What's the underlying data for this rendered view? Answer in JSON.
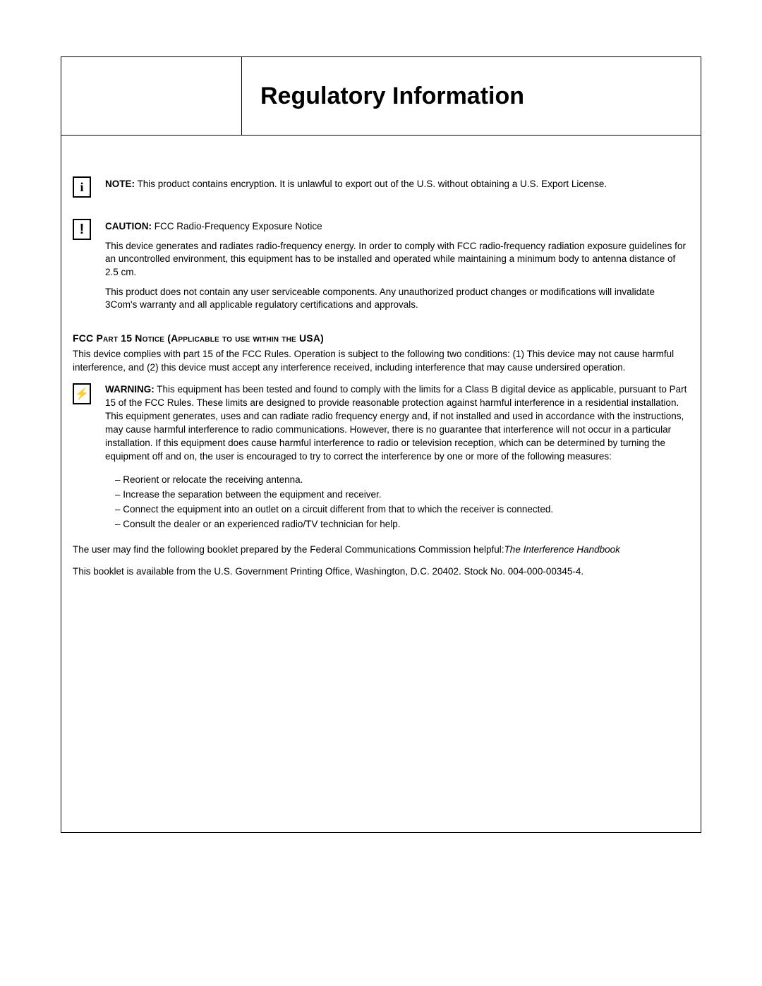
{
  "page": {
    "title": "Regulatory Information"
  },
  "note": {
    "label": "NOTE:",
    "text": " This product contains encryption. It is unlawful to export out of the U.S. without obtaining a U.S. Export License."
  },
  "caution": {
    "label": "CAUTION:",
    "title": " FCC Radio-Frequency Exposure Notice",
    "p1": "This device generates and radiates radio-frequency energy. In order to comply with FCC radio-frequency radiation exposure guidelines for an uncontrolled environment, this equipment has to be installed and operated while maintaining a minimum body to antenna distance of 2.5 cm.",
    "p2": "This product does not contain any user serviceable components. Any unauthorized product changes or modifications will invalidate 3Com's warranty and all applicable regulatory certifications and approvals."
  },
  "fcc": {
    "heading": "FCC Part 15 Notice (Applicable to use within the USA)",
    "intro": "This device complies with part 15 of the FCC Rules. Operation is subject to the following two conditions: (1) This device may not cause harmful interference, and (2) this device must accept any interference received, including interference that may cause undersired operation."
  },
  "warning": {
    "label": "WARNING:",
    "text": " This equipment has been tested and found to comply with the limits for a Class B digital device as applicable, pursuant to Part 15 of the FCC Rules. These limits are designed to provide reasonable protection against harmful interference in a residential installation.  This equipment generates, uses and can radiate radio frequency energy and, if not installed and used in accordance with the instructions, may cause harmful interference to radio communications. However, there is no guarantee that interference will not occur in a particular installation. If this equipment does cause harmful interference to radio or television reception, which can be determined by turning the equipment off and on, the user is encouraged to try to correct the interference by one or more of the following measures:"
  },
  "bullets": {
    "b1": "Reorient or relocate the receiving antenna.",
    "b2": "Increase the separation between the equipment and receiver.",
    "b3": "Connect the equipment into an outlet on a circuit different from that to which the receiver is connected.",
    "b4": "Consult the dealer or an experienced radio/TV technician for help."
  },
  "footer": {
    "p1a": "The user may find the following booklet prepared by the Federal Communications Commission helpful:",
    "p1b": "The Interference Handbook",
    "p2": "This booklet is available from the U.S. Government Printing Office, Washington, D.C. 20402. Stock No. 004-000-00345-4."
  }
}
